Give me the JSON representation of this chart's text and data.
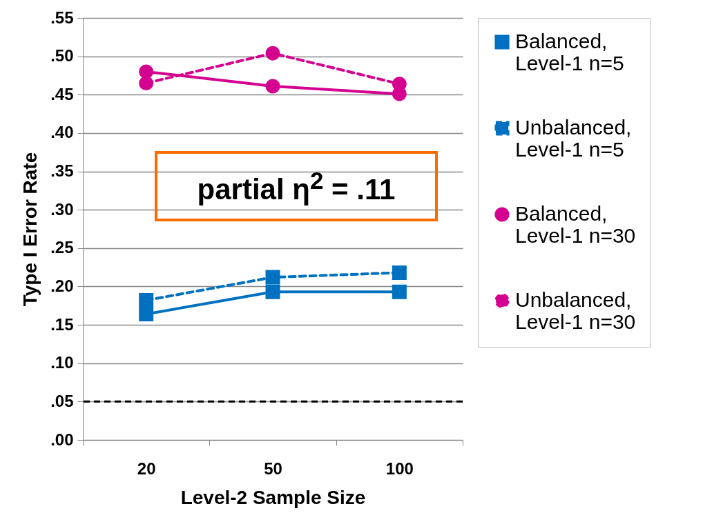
{
  "chart_data": {
    "type": "line",
    "xlabel": "Level-2 Sample Size",
    "ylabel": "Type I Error Rate",
    "categories": [
      "20",
      "50",
      "100"
    ],
    "series": [
      {
        "name": "Balanced, Level-1 n=5",
        "color": "#0070c0",
        "values": [
          0.164,
          0.193,
          0.193
        ],
        "marker": "square",
        "line_style": "solid"
      },
      {
        "name": "Unbalanced, Level-1 n=5",
        "color": "#0070c0",
        "values": [
          0.182,
          0.212,
          0.218
        ],
        "marker": "square",
        "line_style": "dashed"
      },
      {
        "name": "Balanced, Level-1 n=30",
        "color": "#d4008f",
        "values": [
          0.48,
          0.461,
          0.451
        ],
        "marker": "circle",
        "line_style": "solid"
      },
      {
        "name": "Unbalanced, Level-1 n=30",
        "color": "#d4008f",
        "values": [
          0.465,
          0.504,
          0.464
        ],
        "marker": "circle",
        "line_style": "dashed"
      }
    ],
    "ylim": [
      0,
      0.55
    ],
    "yticks": [
      {
        "value": 0,
        "label": ".00"
      },
      {
        "value": 0.05,
        "label": ".05"
      },
      {
        "value": 0.1,
        "label": ".10"
      },
      {
        "value": 0.15,
        "label": ".15"
      },
      {
        "value": 0.2,
        "label": ".20"
      },
      {
        "value": 0.25,
        "label": ".25"
      },
      {
        "value": 0.3,
        "label": ".30"
      },
      {
        "value": 0.35,
        "label": ".35"
      },
      {
        "value": 0.4,
        "label": ".40"
      },
      {
        "value": 0.45,
        "label": ".45"
      },
      {
        "value": 0.5,
        "label": ".50"
      },
      {
        "value": 0.55,
        "label": ".55"
      }
    ],
    "ref_lines": [
      {
        "axis": "y",
        "value": 0.05,
        "color": "#000000",
        "line_style": "dashed"
      }
    ],
    "annotations": [
      "partial η$^{2}$ = .11"
    ],
    "grid": "y",
    "legend": "right"
  }
}
